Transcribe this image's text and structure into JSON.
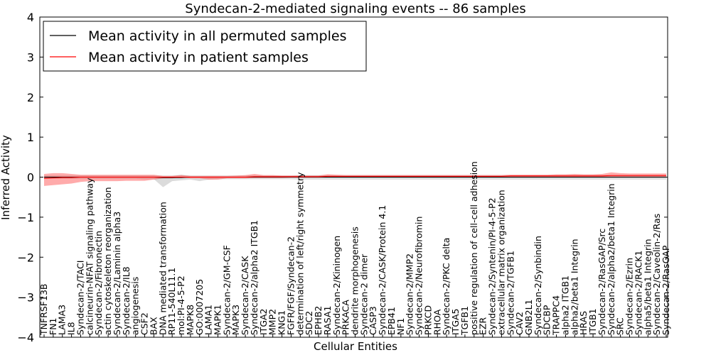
{
  "chart_data": {
    "type": "line",
    "title": "Syndecan-2-mediated signaling events -- 86 samples",
    "xlabel": "Cellular Entities",
    "ylabel": "Inferred Activity",
    "ylim": [
      -4,
      4
    ],
    "yticks": [
      4,
      3,
      2,
      1,
      0,
      -1,
      -2,
      -3,
      -4
    ],
    "ytick_labels": [
      "4",
      "3",
      "2",
      "1",
      "0",
      "−1",
      "−2",
      "−3",
      "−4"
    ],
    "legend": {
      "placement": "top-left",
      "entries": [
        {
          "label": "Mean activity in all permuted samples",
          "color": "#000000"
        },
        {
          "label": "Mean activity in patient samples",
          "color": "#ff0000"
        }
      ]
    },
    "categories": [
      "TNFRSF13B",
      "FN1",
      "LAMA3",
      "IL8",
      "Syndecan-2/TACI",
      "calcineurin-NFAT signaling pathway",
      "Syndecan-2/Fibronectin",
      "actin cytoskeleton reorganization",
      "Syndecan-2/Laminin alpha3",
      "Syndecan-2/IL8",
      "angiogenesis",
      "CSF2",
      "BAX",
      "DNA mediated transformation",
      "RP11-540L11.1",
      "mol:PI-4-5-P2",
      "MAPK8",
      "GO:0007205",
      "LAMA1",
      "MAPK1",
      "Syndecan-2/GM-CSF",
      "MAPK3",
      "Syndecan-2/CASK",
      "Syndecan-2/alpha2 ITGB1",
      "ITGA2",
      "MMP2",
      "KNG1",
      "FGFR/FGF/Syndecan-2",
      "determination of left/right symmetry",
      "SDC2",
      "EPHB2",
      "RASA1",
      "Syndecan-2/Kininogen",
      "PRKACA",
      "dendrite morphogenesis",
      "Syndecan-2 dimer",
      "CASP3",
      "Syndecan-2/CASK/Protein 4.1",
      "EPB41",
      "NF1",
      "Syndecan-2/MMP2",
      "Syndecan-2/Neurofibromin",
      "PRKCD",
      "RHOA",
      "Syndecan-2/PKC delta",
      "ITGA5",
      "TGFB1",
      "positive regulation of cell-cell adhesion",
      "EZR",
      "Syndecan-2/Syntenin/PI-4-5-P2",
      "extracellular matrix organization",
      "Syndecan-2/TGFB1",
      "CAV2",
      "GNB2L1",
      "Syndecan-2/Synbindin",
      "SDCBP",
      "TRAPPC4",
      "alpha2 ITGB1",
      "alpha2/beta1 Integrin",
      "HRAS",
      "ITGB1",
      "Syndecan-2/RasGAP/Src",
      "Syndecan-2/alpha2/beta1 Integrin",
      "SRC",
      "Syndecan-2/Ezrin",
      "Syndecan-2/RACK1",
      "alpha5/beta1 Integrin",
      "Syndecan-2/Caveolin-2/Ras",
      "Syndecan-2/RasGAP"
    ],
    "series": [
      {
        "name": "Mean activity in all permuted samples",
        "color": "#000000",
        "values": [
          0.0,
          0.0,
          0.0,
          0.0,
          0.0,
          0.0,
          0.0,
          0.0,
          0.0,
          0.0,
          0.0,
          0.0,
          0.0,
          -0.01,
          -0.01,
          -0.01,
          0.0,
          0.0,
          0.0,
          0.0,
          0.0,
          0.0,
          0.0,
          0.0,
          0.0,
          0.0,
          0.0,
          0.0,
          0.0,
          0.0,
          0.0,
          0.0,
          0.0,
          0.0,
          0.0,
          0.0,
          0.0,
          0.0,
          0.0,
          0.0,
          0.0,
          0.0,
          0.0,
          0.0,
          0.0,
          0.0,
          0.0,
          0.0,
          0.0,
          0.0,
          0.0,
          0.0,
          0.0,
          0.0,
          0.0,
          0.0,
          0.0,
          0.0,
          0.0,
          0.0,
          0.0,
          0.0,
          0.0,
          0.0,
          0.0,
          0.0,
          0.0,
          0.0,
          0.0
        ],
        "band_low": [
          -0.04,
          -0.04,
          -0.04,
          -0.04,
          -0.04,
          -0.04,
          -0.04,
          -0.04,
          -0.04,
          -0.04,
          -0.04,
          -0.05,
          -0.05,
          -0.25,
          -0.1,
          -0.08,
          -0.06,
          -0.1,
          -0.06,
          -0.05,
          -0.05,
          -0.05,
          -0.05,
          -0.05,
          -0.05,
          -0.05,
          -0.05,
          -0.05,
          -0.06,
          -0.06,
          -0.06,
          -0.06,
          -0.06,
          -0.06,
          -0.06,
          -0.06,
          -0.06,
          -0.06,
          -0.06,
          -0.06,
          -0.06,
          -0.06,
          -0.06,
          -0.06,
          -0.06,
          -0.06,
          -0.06,
          -0.06,
          -0.06,
          -0.06,
          -0.06,
          -0.06,
          -0.06,
          -0.06,
          -0.06,
          -0.06,
          -0.06,
          -0.06,
          -0.06,
          -0.06,
          -0.06,
          -0.06,
          -0.06,
          -0.06,
          -0.06,
          -0.06,
          -0.06,
          -0.06,
          -0.06
        ],
        "band_high": [
          0.04,
          0.04,
          0.04,
          0.04,
          0.04,
          0.04,
          0.04,
          0.04,
          0.04,
          0.04,
          0.04,
          0.04,
          0.04,
          0.04,
          0.04,
          0.06,
          0.04,
          0.04,
          0.04,
          0.04,
          0.04,
          0.04,
          0.04,
          0.04,
          0.04,
          0.04,
          0.04,
          0.04,
          0.05,
          0.05,
          0.05,
          0.05,
          0.05,
          0.05,
          0.05,
          0.05,
          0.05,
          0.05,
          0.05,
          0.05,
          0.05,
          0.05,
          0.05,
          0.05,
          0.05,
          0.05,
          0.05,
          0.05,
          0.05,
          0.05,
          0.05,
          0.05,
          0.05,
          0.05,
          0.05,
          0.05,
          0.05,
          0.05,
          0.05,
          0.05,
          0.05,
          0.05,
          0.05,
          0.05,
          0.05,
          0.05,
          0.05,
          0.05,
          0.05
        ]
      },
      {
        "name": "Mean activity in patient samples",
        "color": "#ff0000",
        "values": [
          -0.03,
          -0.02,
          -0.01,
          -0.01,
          0.0,
          0.0,
          0.0,
          0.0,
          0.0,
          0.0,
          0.0,
          0.0,
          0.0,
          0.0,
          0.0,
          0.0,
          0.0,
          0.0,
          0.0,
          0.0,
          0.0,
          0.0,
          0.0,
          0.01,
          0.01,
          0.01,
          0.01,
          0.01,
          0.01,
          0.01,
          0.01,
          0.02,
          0.02,
          0.02,
          0.02,
          0.02,
          0.02,
          0.02,
          0.02,
          0.02,
          0.02,
          0.02,
          0.02,
          0.02,
          0.02,
          0.02,
          0.02,
          0.02,
          0.02,
          0.02,
          0.02,
          0.03,
          0.03,
          0.03,
          0.03,
          0.03,
          0.03,
          0.03,
          0.03,
          0.03,
          0.03,
          0.03,
          0.04,
          0.04,
          0.04,
          0.04,
          0.04,
          0.04,
          0.04
        ],
        "band_low": [
          -0.22,
          -0.2,
          -0.18,
          -0.16,
          -0.12,
          -0.1,
          -0.1,
          -0.1,
          -0.1,
          -0.09,
          -0.09,
          -0.09,
          -0.06,
          -0.03,
          -0.03,
          0.0,
          -0.03,
          -0.03,
          -0.06,
          -0.06,
          -0.03,
          -0.03,
          -0.03,
          -0.02,
          -0.02,
          -0.02,
          -0.02,
          -0.01,
          -0.01,
          -0.01,
          -0.01,
          0.0,
          0.0,
          0.0,
          0.0,
          0.0,
          0.0,
          0.0,
          0.0,
          0.0,
          0.0,
          0.0,
          0.0,
          0.0,
          0.0,
          0.0,
          0.0,
          0.0,
          0.0,
          0.0,
          0.0,
          0.0,
          0.0,
          0.0,
          0.0,
          0.0,
          0.0,
          0.0,
          0.0,
          0.0,
          0.0,
          0.0,
          0.0,
          0.0,
          0.0,
          0.0,
          0.0,
          0.0,
          0.0
        ],
        "band_high": [
          0.08,
          0.1,
          0.1,
          0.08,
          0.06,
          0.06,
          0.06,
          0.06,
          0.06,
          0.06,
          0.06,
          0.06,
          0.06,
          0.03,
          0.03,
          0.05,
          0.03,
          0.03,
          0.03,
          0.03,
          0.03,
          0.04,
          0.05,
          0.08,
          0.05,
          0.05,
          0.04,
          0.04,
          0.04,
          0.04,
          0.04,
          0.07,
          0.06,
          0.05,
          0.05,
          0.05,
          0.05,
          0.05,
          0.05,
          0.05,
          0.05,
          0.05,
          0.05,
          0.05,
          0.05,
          0.05,
          0.05,
          0.05,
          0.05,
          0.05,
          0.05,
          0.06,
          0.06,
          0.06,
          0.06,
          0.06,
          0.07,
          0.07,
          0.08,
          0.07,
          0.07,
          0.08,
          0.12,
          0.1,
          0.09,
          0.09,
          0.09,
          0.09,
          0.09
        ]
      }
    ]
  }
}
